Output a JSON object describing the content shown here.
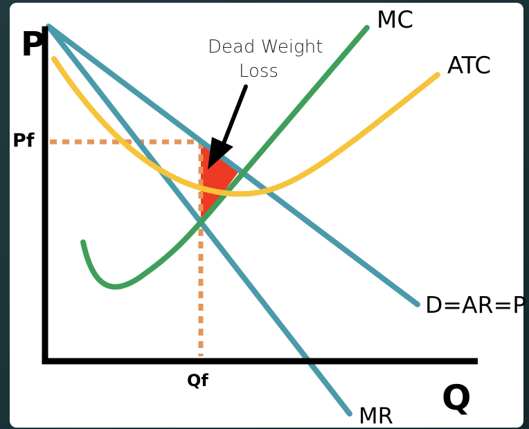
{
  "diagram": {
    "axes": {
      "y_label": "P",
      "x_label": "Q"
    },
    "price_label": "Pf",
    "quantity_label": "Qf",
    "annotation": {
      "line1": "Dead Weight",
      "line2": "Loss"
    },
    "curves": {
      "mc": "MC",
      "atc": "ATC",
      "demand": "D=AR=P",
      "mr": "MR"
    },
    "colors": {
      "demand_mr": "#4a9aaa",
      "mc": "#3f9f5a",
      "atc": "#f5c43a",
      "dashed": "#e3965a",
      "dwl": "#ee3a22",
      "axis": "#000000"
    }
  }
}
